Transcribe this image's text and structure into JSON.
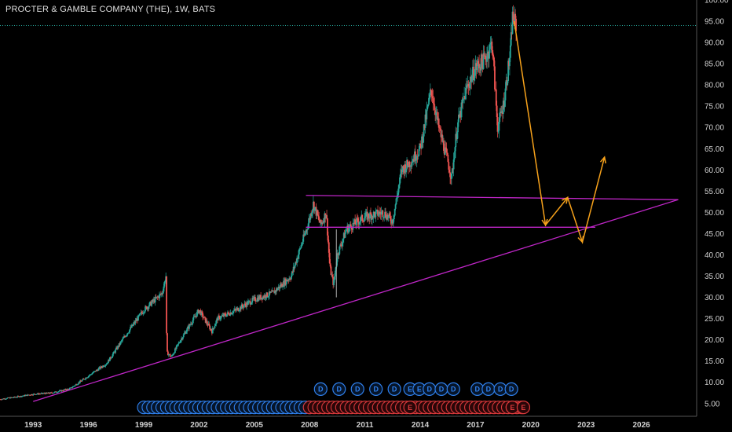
{
  "title": "PROCTER & GAMBLE COMPANY (THE), 1W, BATS",
  "colors": {
    "background": "#000000",
    "candle_up": "#26a69a",
    "candle_down": "#ef5350",
    "wick": "#b0b0b0",
    "trendline": "#c026c8",
    "projection": "#f7a21b",
    "price_line": "#26a69a",
    "dividend_marker": "#2f80ed",
    "earnings_marker": "#d9393b",
    "axis_text": "#cfcfcf"
  },
  "chart_data": {
    "type": "candlestick",
    "x_axis": {
      "type": "time",
      "range": [
        1991.2,
        2029.0
      ],
      "tick_labels": [
        "1993",
        "1996",
        "1999",
        "2002",
        "2005",
        "2008",
        "2011",
        "2014",
        "2017",
        "2020",
        "2023",
        "2026"
      ]
    },
    "y_axis": {
      "side": "right",
      "range": [
        2.0,
        100.0
      ],
      "tick_labels": [
        "5.00",
        "10.00",
        "15.00",
        "20.00",
        "25.00",
        "30.00",
        "35.00",
        "40.00",
        "45.00",
        "50.00",
        "55.00",
        "60.00",
        "65.00",
        "70.00",
        "75.00",
        "80.00",
        "85.00",
        "90.00",
        "95.00",
        "100.00"
      ]
    },
    "price_path": [
      [
        1991.2,
        6.0
      ],
      [
        1992.0,
        6.5
      ],
      [
        1993.0,
        7.2
      ],
      [
        1994.0,
        7.5
      ],
      [
        1995.0,
        8.5
      ],
      [
        1996.0,
        11.5
      ],
      [
        1997.0,
        14.5
      ],
      [
        1998.0,
        21.0
      ],
      [
        1999.0,
        27.0
      ],
      [
        2000.0,
        31.0
      ],
      [
        2000.2,
        35.0
      ],
      [
        2000.25,
        17.0
      ],
      [
        2000.5,
        16.0
      ],
      [
        2001.0,
        20.0
      ],
      [
        2002.0,
        27.0
      ],
      [
        2002.7,
        22.0
      ],
      [
        2003.0,
        25.0
      ],
      [
        2004.0,
        27.0
      ],
      [
        2005.0,
        29.5
      ],
      [
        2006.0,
        31.0
      ],
      [
        2007.0,
        35.0
      ],
      [
        2007.9,
        47.0
      ],
      [
        2008.2,
        52.0
      ],
      [
        2008.6,
        47.0
      ],
      [
        2008.9,
        50.0
      ],
      [
        2009.1,
        37.0
      ],
      [
        2009.3,
        33.0
      ],
      [
        2009.5,
        40.0
      ],
      [
        2010.0,
        46.0
      ],
      [
        2011.0,
        49.0
      ],
      [
        2012.0,
        50.0
      ],
      [
        2012.5,
        48.0
      ],
      [
        2013.0,
        60.0
      ],
      [
        2013.5,
        62.0
      ],
      [
        2014.0,
        65.0
      ],
      [
        2014.6,
        79.0
      ],
      [
        2015.0,
        70.0
      ],
      [
        2015.5,
        62.0
      ],
      [
        2015.7,
        58.0
      ],
      [
        2016.0,
        70.0
      ],
      [
        2016.5,
        79.0
      ],
      [
        2017.0,
        84.0
      ],
      [
        2017.5,
        86.0
      ],
      [
        2017.9,
        90.0
      ],
      [
        2018.2,
        70.0
      ],
      [
        2018.5,
        75.0
      ],
      [
        2018.9,
        88.0
      ],
      [
        2019.0,
        96.0
      ],
      [
        2019.2,
        94.0
      ]
    ],
    "low_spike": {
      "x": 2009.45,
      "low": 30.0
    },
    "last_price": 94.0,
    "trendlines": [
      {
        "kind": "rising_support",
        "from": [
          1993.0,
          5.5
        ],
        "to": [
          2028.0,
          53.0
        ]
      },
      {
        "kind": "resistance",
        "from": [
          2007.8,
          54.0
        ],
        "to": [
          2028.0,
          53.0
        ]
      },
      {
        "kind": "support",
        "from": [
          2007.8,
          46.5
        ],
        "to": [
          2023.5,
          46.5
        ]
      }
    ],
    "projection_path": [
      [
        2019.1,
        95.0
      ],
      [
        2020.8,
        47.0
      ],
      [
        2022.0,
        53.5
      ],
      [
        2022.8,
        43.0
      ],
      [
        2024.0,
        63.0
      ]
    ],
    "dividend_markers": {
      "row_labels": [
        "D",
        "D",
        "D",
        "D",
        "D",
        "E",
        "E",
        "D",
        "D",
        "D",
        "D",
        "D",
        "D",
        "D"
      ],
      "x_values": [
        2008.6,
        2009.6,
        2010.6,
        2011.6,
        2012.6,
        2013.45,
        2013.95,
        2014.5,
        2015.15,
        2015.8,
        2017.1,
        2017.7,
        2018.35,
        2018.95
      ],
      "y_value": 8.4
    },
    "event_row": {
      "blue_range": [
        1999.0,
        2008.0
      ],
      "red_range": [
        2008.0,
        2019.5
      ],
      "labels": [
        "E",
        "E",
        "E"
      ],
      "label_x": [
        2013.45,
        2019.0,
        2019.6
      ],
      "y_value": 4.1
    }
  }
}
